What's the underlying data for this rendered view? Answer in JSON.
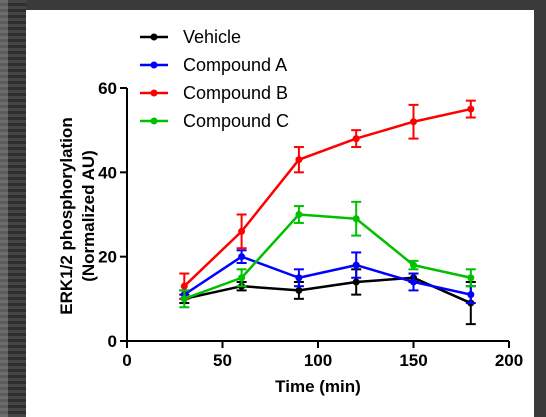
{
  "chart_data": {
    "type": "line",
    "title": "",
    "xlabel": "Time (min)",
    "ylabel_lines": [
      "ERK1/2 phosphorylation",
      "(Normalized AU)"
    ],
    "x": [
      30,
      60,
      90,
      120,
      150,
      180
    ],
    "xlim": [
      0,
      200
    ],
    "ylim": [
      0,
      60
    ],
    "xticks": [
      0,
      50,
      100,
      150,
      200
    ],
    "yticks": [
      0,
      20,
      40,
      60
    ],
    "xtick_labels": [
      "0",
      "50",
      "100",
      "150",
      "200"
    ],
    "ytick_labels": [
      "0",
      "20",
      "40",
      "60"
    ],
    "grid": false,
    "legend_position": "top-left",
    "series": [
      {
        "name": "Vehicle",
        "color": "#000000",
        "values": [
          10,
          13,
          12,
          14,
          15,
          9
        ],
        "errors": [
          1.0,
          1.0,
          2.0,
          3.0,
          1.0,
          5.0
        ]
      },
      {
        "name": "Compound A",
        "color": "#0000ff",
        "values": [
          11,
          20,
          15,
          18,
          14,
          11
        ],
        "errors": [
          1.0,
          1.5,
          2.0,
          3.0,
          2.0,
          2.0
        ]
      },
      {
        "name": "Compound B",
        "color": "#ff0000",
        "values": [
          13,
          26,
          43,
          48,
          52,
          55
        ],
        "errors": [
          3.0,
          4.0,
          3.0,
          2.0,
          4.0,
          2.0
        ]
      },
      {
        "name": "Compound C",
        "color": "#00c000",
        "values": [
          10,
          15,
          30,
          29,
          18,
          15
        ],
        "errors": [
          2.0,
          2.0,
          2.0,
          4.0,
          1.0,
          2.0
        ]
      }
    ]
  }
}
